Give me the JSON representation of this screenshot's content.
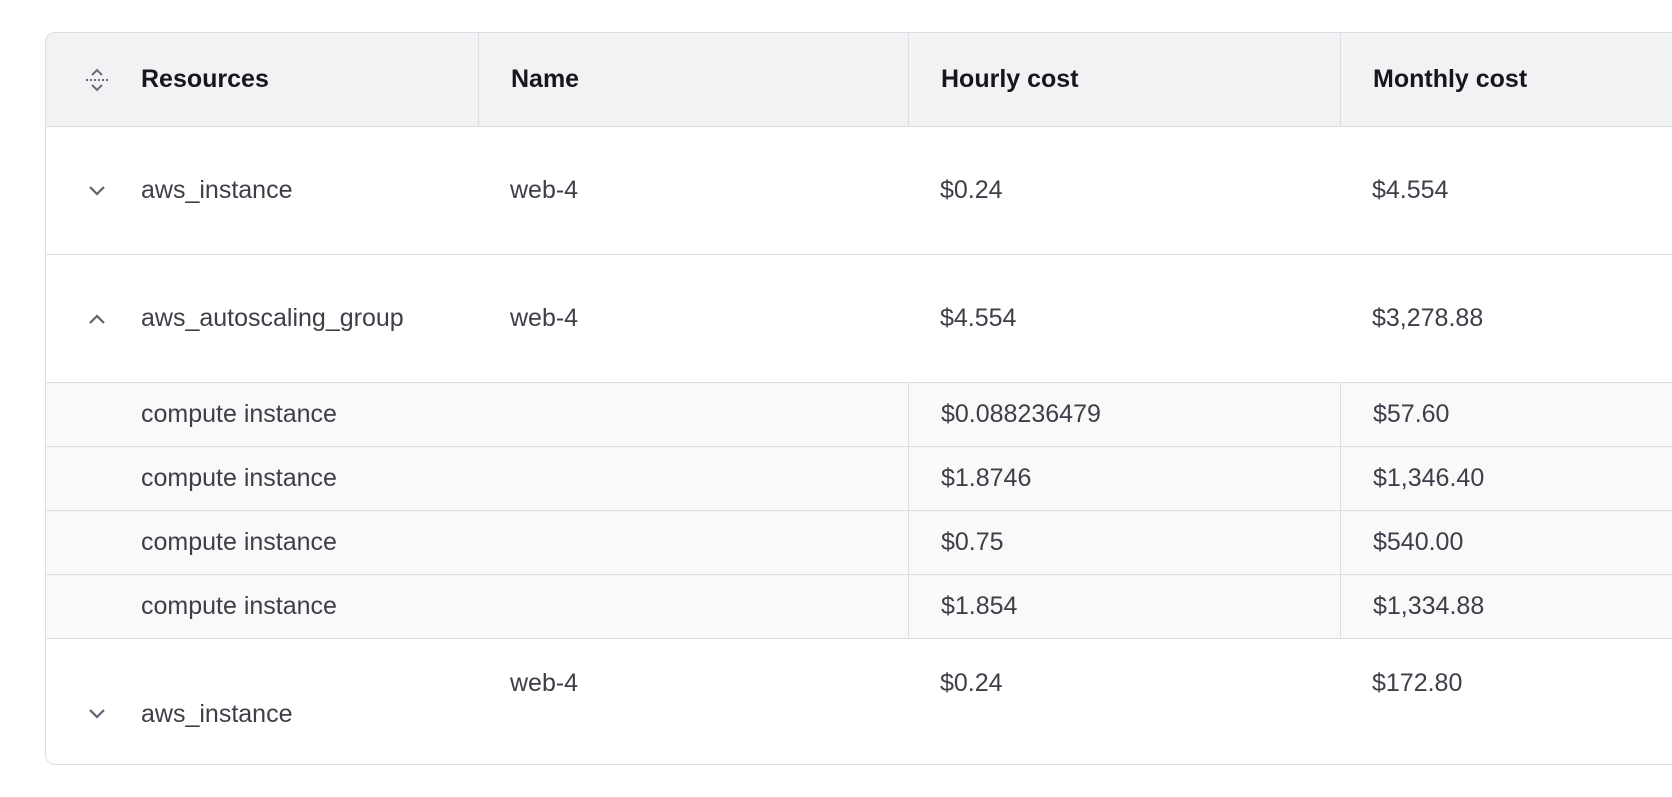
{
  "columns": [
    "Resources",
    "Name",
    "Hourly cost",
    "Monthly cost"
  ],
  "rows": [
    {
      "resource": "aws_instance",
      "name": "web-4",
      "hourly": "$0.24",
      "monthly": "$4.554",
      "toggle": "chevron-down-icon"
    },
    {
      "resource": "aws_autoscaling_group",
      "name": "web-4",
      "hourly": "$4.554",
      "monthly": "$3,278.88",
      "toggle": "chevron-up-icon"
    },
    {
      "resource": "aws_instance",
      "name": "web-4",
      "hourly": "$0.24",
      "monthly": "$172.80",
      "toggle": "chevron-down-icon"
    }
  ],
  "sub_rows": [
    {
      "resource": "compute instance",
      "hourly": "$0.088236479",
      "monthly": "$57.60"
    },
    {
      "resource": "compute instance",
      "hourly": "$1.8746",
      "monthly": "$1,346.40"
    },
    {
      "resource": "compute instance",
      "hourly": "$0.75",
      "monthly": "$540.00"
    },
    {
      "resource": "compute instance",
      "hourly": "$1.854",
      "monthly": "$1,334.88"
    }
  ],
  "colors": {
    "header_bg": "#f1f2f4",
    "sub_row_bg": "#f9f9fa",
    "border": "#dcdde1"
  }
}
